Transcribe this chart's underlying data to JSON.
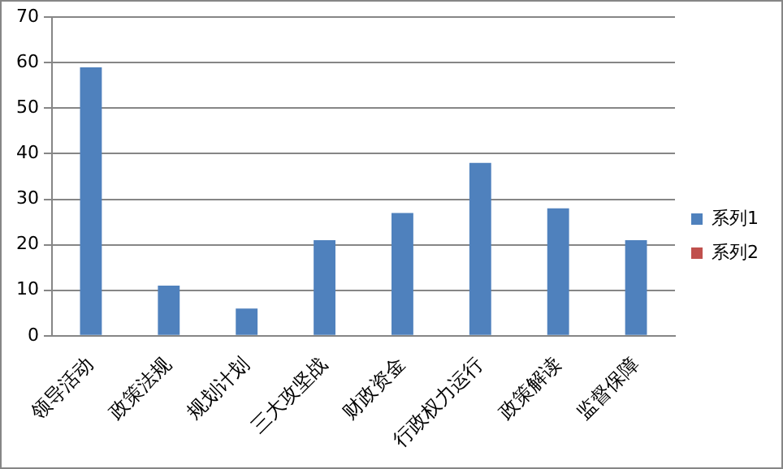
{
  "chart_data": {
    "type": "bar",
    "categories": [
      "领导活动",
      "政策法规",
      "规划计划",
      "三大攻坚战",
      "财政资金",
      "行政权力运行",
      "政策解读",
      "监督保障"
    ],
    "series": [
      {
        "name": "系列1",
        "color": "#4f81bd",
        "values": [
          59,
          11,
          6,
          21,
          27,
          38,
          28,
          21
        ]
      },
      {
        "name": "系列2",
        "color": "#c0504d",
        "values": [
          null,
          null,
          null,
          null,
          null,
          null,
          null,
          null
        ]
      }
    ],
    "ylim": [
      0,
      70
    ],
    "yticks": [
      0,
      10,
      20,
      30,
      40,
      50,
      60,
      70
    ],
    "grid": "y",
    "legend": "right"
  }
}
